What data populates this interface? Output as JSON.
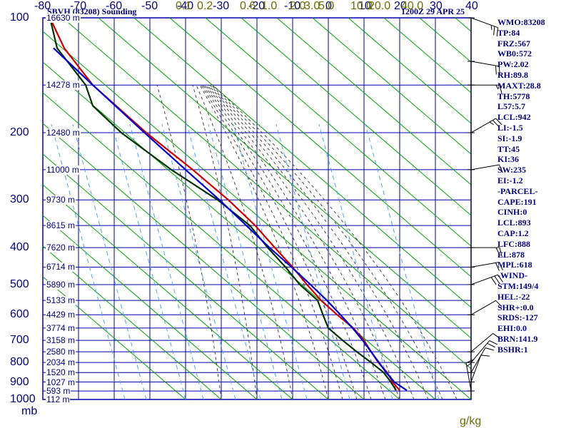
{
  "header": {
    "title": "SBVH (83208) Sounding",
    "datetime": "1200Z 29 APR 25"
  },
  "indices": [
    "WMO:83208",
    "TP:84",
    "FRZ:567",
    "WB0:572",
    "PW:2.02",
    "RH:89.8",
    "MAXT:28.8",
    "TH:5778",
    "L57:5.7",
    "LCL:942",
    "LI:-1.5",
    "SI:-1.9",
    "TT:45",
    "KI:36",
    "SW:235",
    "EI:-1.2",
    "-PARCEL-",
    "CAPE:191",
    "CINH:0",
    "LCL:893",
    "CAP:1.2",
    "LFC:888",
    "EL:878",
    "MPL:618",
    "-WIND-",
    "STM:149/4",
    "HEL:-22",
    "SHR+:0.0",
    "SRDS:-127",
    "EHI:0.0",
    "BRN:141.9",
    "BSHR:1"
  ],
  "colors": {
    "grid": "#0000aa",
    "dry_adiabat": "#00a000",
    "moist_adiabat": "#444444",
    "mixing_ratio": "#4aa3ff",
    "temperature": "#cc0000",
    "dewpoint": "#003300",
    "parcel": "#0000cc",
    "wind": "#000000"
  },
  "chart_data": {
    "type": "line",
    "title": "SBVH (83208) Sounding",
    "subtitle": "1200Z 29 APR 25",
    "x_axis": {
      "unit": "°C",
      "ticks": [
        -80,
        -70,
        -60,
        -50,
        -40,
        -30,
        -20,
        -10,
        0,
        10,
        20,
        30,
        40
      ],
      "range": [
        -80,
        40
      ]
    },
    "y_axis": {
      "unit": "mb",
      "scale": "log",
      "ticks": [
        100,
        200,
        300,
        400,
        500,
        600,
        700,
        800,
        900,
        1000
      ],
      "range": [
        1000,
        100
      ]
    },
    "pressure_axis_label": "mb",
    "mixing_ratio_unit": "g/kg",
    "mixing_ratio_labels": [
      "0.1",
      "0.2",
      "0.6",
      "1.0",
      "2.0",
      "3.0",
      "5.0",
      "10.0",
      "20.0",
      "40.0"
    ],
    "height_labels": [
      {
        "p": 100,
        "label": "16630 m"
      },
      {
        "p": 150,
        "label": "14278 m"
      },
      {
        "p": 200,
        "label": "12480 m"
      },
      {
        "p": 250,
        "label": "11000 m"
      },
      {
        "p": 300,
        "label": "9730 m"
      },
      {
        "p": 350,
        "label": "8615 m"
      },
      {
        "p": 400,
        "label": "7620 m"
      },
      {
        "p": 450,
        "label": "6714 m"
      },
      {
        "p": 500,
        "label": "5890 m"
      },
      {
        "p": 550,
        "label": "5133 m"
      },
      {
        "p": 600,
        "label": "4429 m"
      },
      {
        "p": 650,
        "label": "3774 m"
      },
      {
        "p": 700,
        "label": "3158 m"
      },
      {
        "p": 750,
        "label": "2580 m"
      },
      {
        "p": 800,
        "label": "2034 m"
      },
      {
        "p": 850,
        "label": "1520 m"
      },
      {
        "p": 900,
        "label": "1027 m"
      },
      {
        "p": 950,
        "label": "593 m"
      },
      {
        "p": 1000,
        "label": "112 m"
      }
    ],
    "series": [
      {
        "key": "temperature",
        "points": [
          [
            947,
            20
          ],
          [
            900,
            18
          ],
          [
            850,
            16.5
          ],
          [
            800,
            14
          ],
          [
            750,
            12
          ],
          [
            700,
            10
          ],
          [
            650,
            7
          ],
          [
            600,
            2.5
          ],
          [
            550,
            -2
          ],
          [
            500,
            -6
          ],
          [
            450,
            -10
          ],
          [
            400,
            -15
          ],
          [
            350,
            -20.5
          ],
          [
            300,
            -28
          ],
          [
            250,
            -38
          ],
          [
            200,
            -51
          ],
          [
            150,
            -66
          ],
          [
            120,
            -74
          ],
          [
            100,
            -78
          ]
        ]
      },
      {
        "key": "dewpoint",
        "points": [
          [
            947,
            19
          ],
          [
            900,
            17.5
          ],
          [
            850,
            15.5
          ],
          [
            800,
            12
          ],
          [
            750,
            8
          ],
          [
            700,
            4
          ],
          [
            650,
            0
          ],
          [
            600,
            -1.5
          ],
          [
            550,
            -3
          ],
          [
            500,
            -8
          ],
          [
            450,
            -12
          ],
          [
            400,
            -17
          ],
          [
            350,
            -22
          ],
          [
            300,
            -31
          ],
          [
            250,
            -44
          ],
          [
            200,
            -58
          ],
          [
            170,
            -66
          ],
          [
            150,
            -68
          ],
          [
            120,
            -76
          ],
          [
            100,
            -78
          ]
        ]
      },
      {
        "key": "parcel",
        "points": [
          [
            947,
            22
          ],
          [
            900,
            18.5
          ],
          [
            850,
            16.2
          ],
          [
            800,
            14.2
          ],
          [
            750,
            12
          ],
          [
            700,
            9.6
          ],
          [
            650,
            6.8
          ],
          [
            600,
            3.4
          ],
          [
            550,
            -0.4
          ],
          [
            500,
            -5
          ],
          [
            450,
            -10.3
          ],
          [
            400,
            -16.5
          ],
          [
            350,
            -23
          ],
          [
            300,
            -30.5
          ],
          [
            250,
            -40
          ],
          [
            200,
            -51.5
          ],
          [
            150,
            -66
          ],
          [
            120,
            -77
          ],
          [
            100,
            -84
          ]
        ]
      }
    ],
    "wind": [
      {
        "p": 100,
        "spd": 25,
        "dir": 110
      },
      {
        "p": 130,
        "spd": 20,
        "dir": 100
      },
      {
        "p": 150,
        "spd": 15,
        "dir": 90
      },
      {
        "p": 200,
        "spd": 25,
        "dir": 60
      },
      {
        "p": 250,
        "spd": 10,
        "dir": 80
      },
      {
        "p": 400,
        "spd": 15,
        "dir": 90
      },
      {
        "p": 450,
        "spd": 20,
        "dir": 80
      },
      {
        "p": 500,
        "spd": 30,
        "dir": 70
      },
      {
        "p": 600,
        "spd": 10,
        "dir": 60
      },
      {
        "p": 750,
        "spd": 10,
        "dir": 50
      },
      {
        "p": 800,
        "spd": 20,
        "dir": 40
      },
      {
        "p": 850,
        "spd": 10,
        "dir": 30
      },
      {
        "p": 900,
        "spd": 10,
        "dir": 20
      },
      {
        "p": 950,
        "spd": 15,
        "dir": 350
      }
    ]
  }
}
